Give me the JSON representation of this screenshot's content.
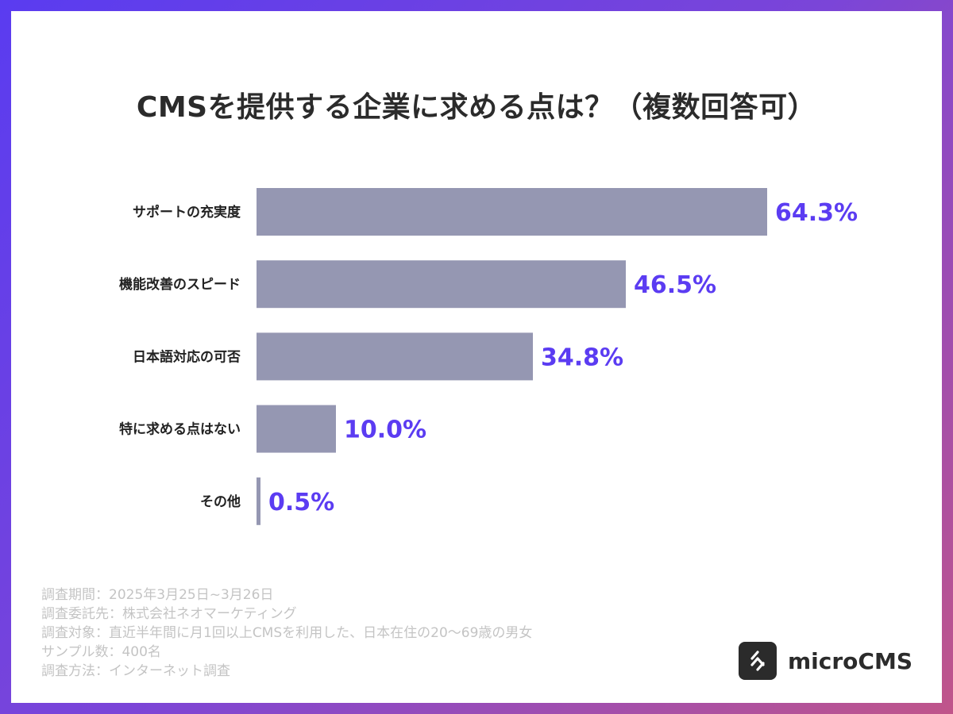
{
  "title": "CMSを提供する企業に求める点は？（複数回答可）",
  "chart_data": {
    "type": "bar",
    "orientation": "horizontal",
    "categories": [
      "サポートの充実度",
      "機能改善のスピード",
      "日本語対応の可否",
      "特に求める点はない",
      "その他"
    ],
    "values": [
      64.3,
      46.5,
      34.8,
      10.0,
      0.5
    ],
    "value_labels": [
      "64.3%",
      "46.5%",
      "34.8%",
      "10.0%",
      "0.5%"
    ],
    "unit": "%",
    "xlim": [
      0,
      100
    ],
    "grid": false,
    "bar_color": "#9597b2",
    "value_color": "#5b3cf2"
  },
  "notes": [
    "調査期間：2025年3月25日~3月26日",
    "調査委託先：株式会社ネオマーケティング",
    "調査対象：直近半年間に月1回以上CMSを利用した、日本在住の20～69歳の男女",
    "サンプル数：400名",
    "調査方法：インターネット調査"
  ],
  "logo": {
    "text": "microCMS",
    "icon": "microcms-logo-icon"
  }
}
